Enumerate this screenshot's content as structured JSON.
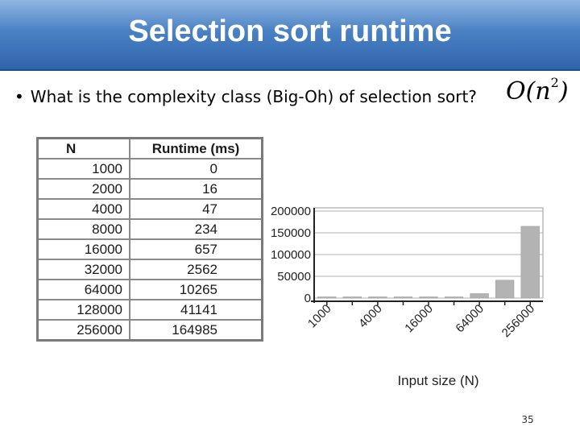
{
  "slide": {
    "title": "Selection sort runtime",
    "bullet": "What is the complexity class (Big-Oh) of selection sort?",
    "answer_base": "O(n",
    "answer_exp": "2",
    "answer_close": ")",
    "page_number": "35"
  },
  "table": {
    "headers": [
      "N",
      "Runtime (ms)"
    ],
    "rows": [
      [
        "1000",
        "0"
      ],
      [
        "2000",
        "16"
      ],
      [
        "4000",
        "47"
      ],
      [
        "8000",
        "234"
      ],
      [
        "16000",
        "657"
      ],
      [
        "32000",
        "2562"
      ],
      [
        "64000",
        "10265"
      ],
      [
        "128000",
        "41141"
      ],
      [
        "256000",
        "164985"
      ]
    ]
  },
  "chart_data": {
    "type": "bar",
    "categories": [
      "1000",
      "2000",
      "4000",
      "8000",
      "16000",
      "32000",
      "64000",
      "128000",
      "256000"
    ],
    "x_tick_labels": [
      "1000",
      "4000",
      "16000",
      "64000",
      "256000"
    ],
    "values": [
      0,
      16,
      47,
      234,
      657,
      2562,
      10265,
      41141,
      164985
    ],
    "xlabel": "Input size (N)",
    "ylabel": "",
    "y_ticks": [
      "200000",
      "150000",
      "100000",
      "50000",
      "0"
    ],
    "ylim": [
      0,
      200000
    ],
    "grid": true,
    "bar_color": "#b3b3b3"
  }
}
